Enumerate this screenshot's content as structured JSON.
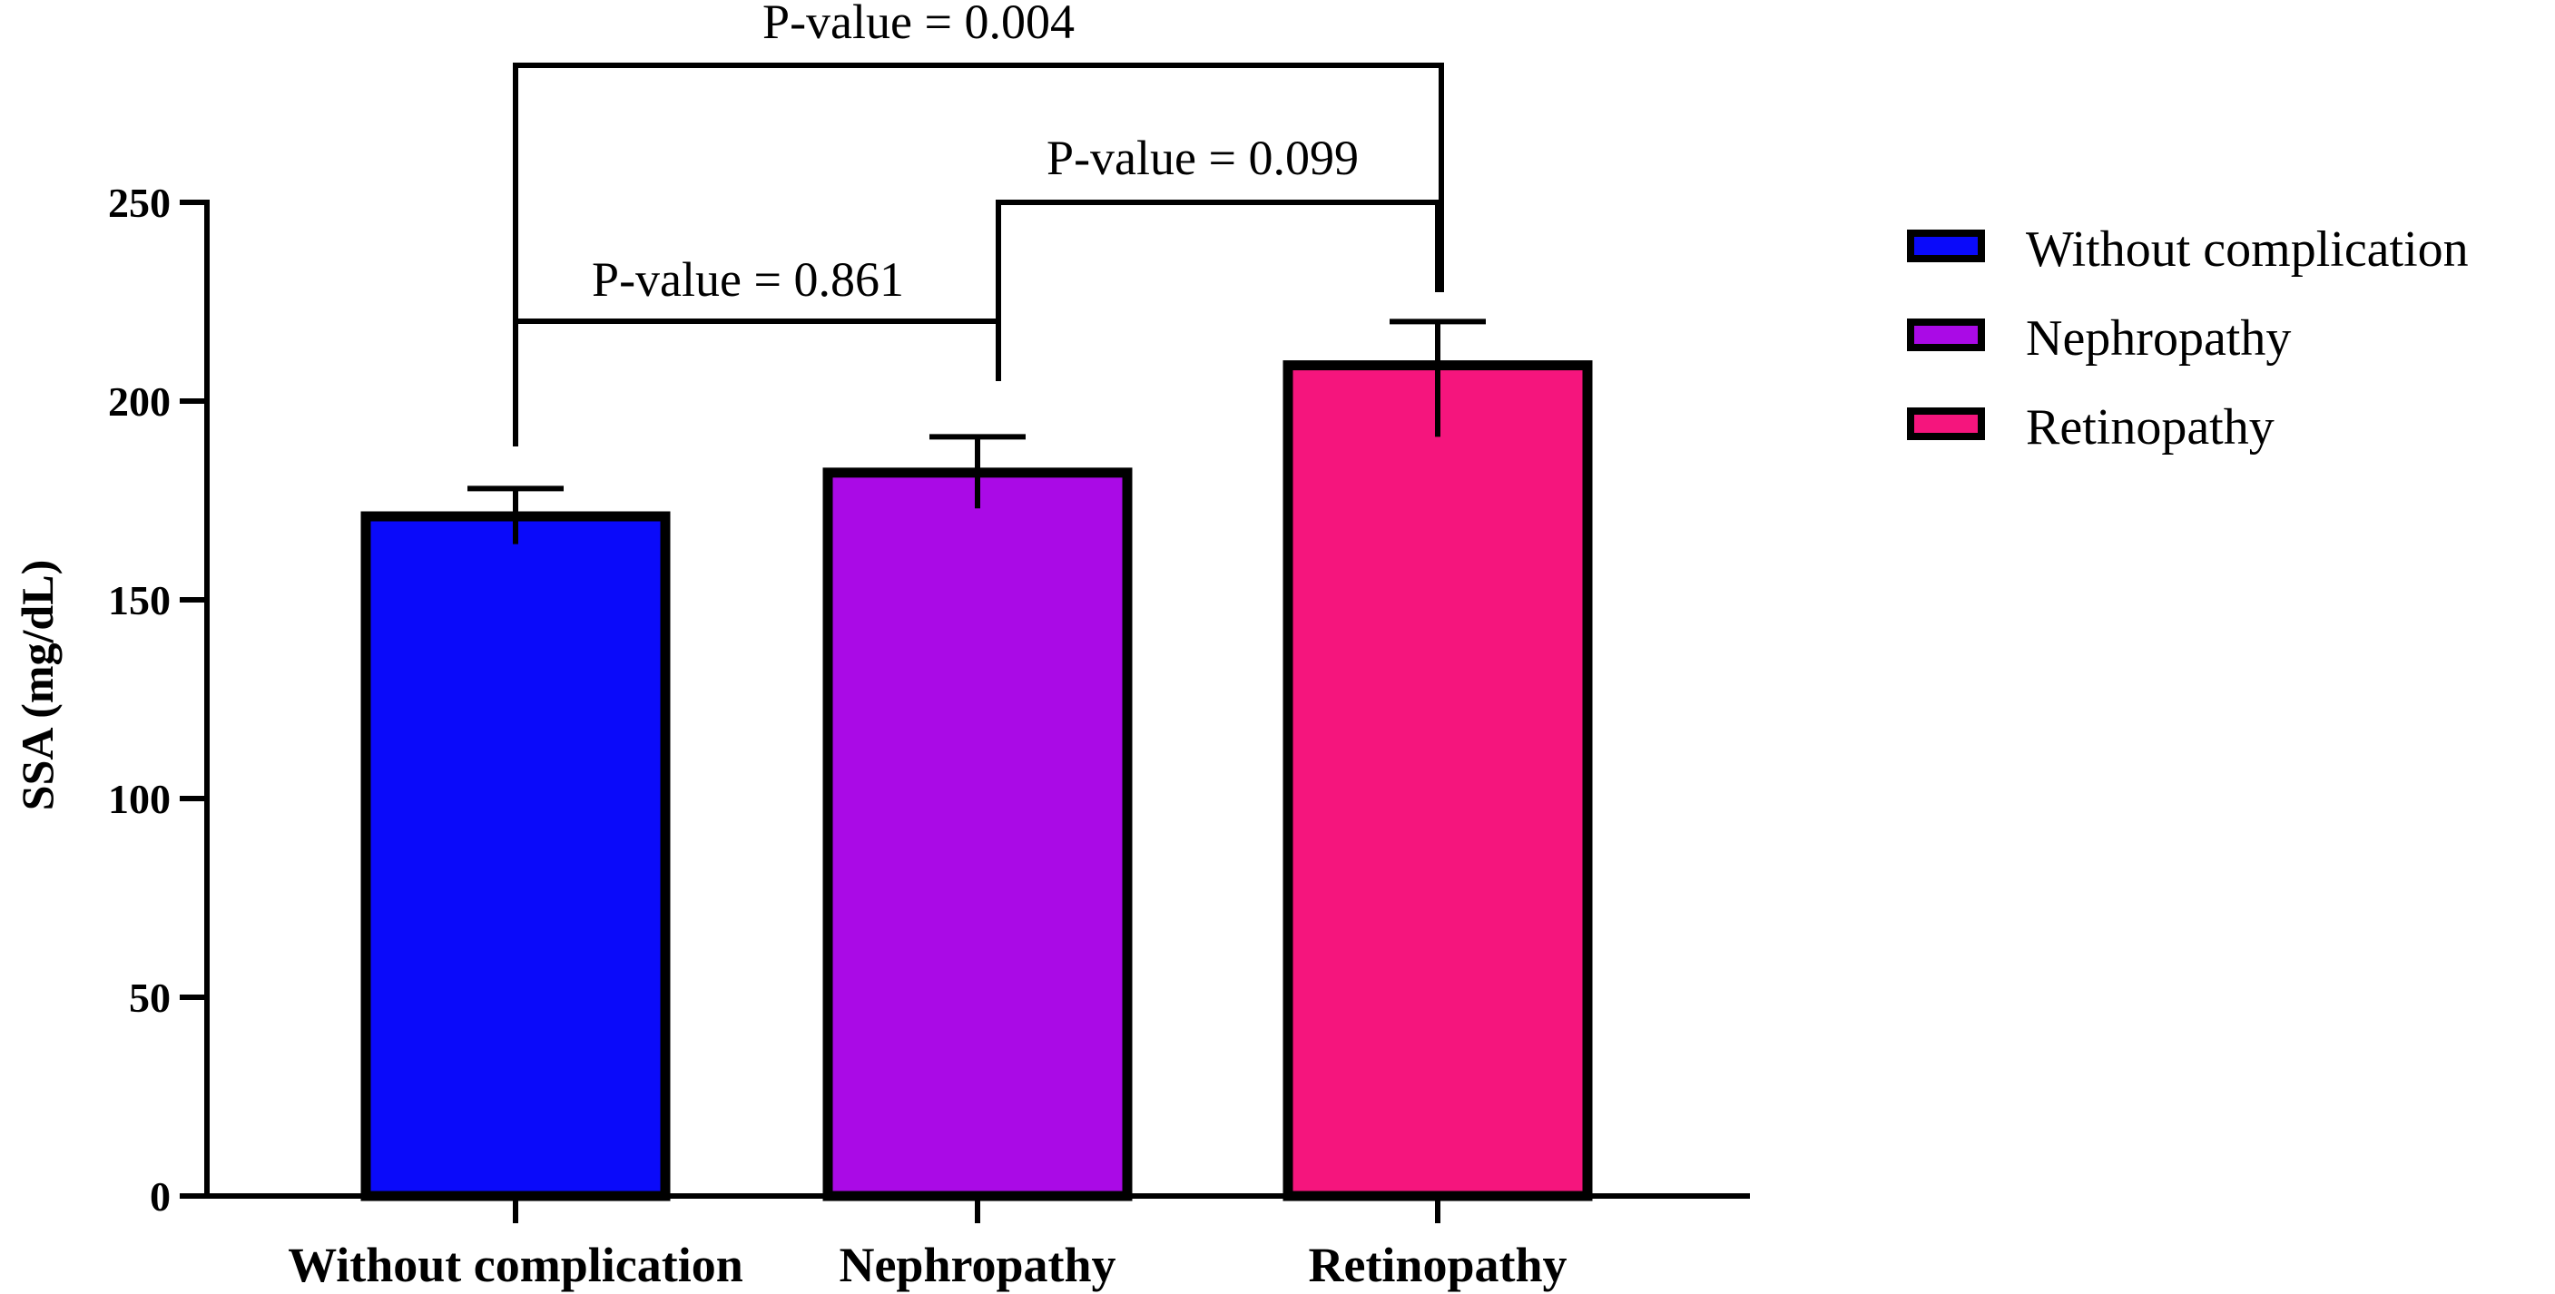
{
  "chart_data": {
    "type": "bar",
    "title": "",
    "xlabel": "",
    "ylabel": "SSA (mg/dL)",
    "ylim": [
      0,
      250
    ],
    "yticks": [
      0,
      50,
      100,
      150,
      200,
      250
    ],
    "categories": [
      "Without complication",
      "Nephropathy",
      "Retinopathy"
    ],
    "values": [
      171,
      182,
      209
    ],
    "error_plus": [
      7,
      9,
      11
    ],
    "error_minus": [
      7,
      9,
      18
    ],
    "colors": [
      "#0a0afa",
      "#aa0ae6",
      "#f5157d"
    ],
    "grid": false,
    "legend": {
      "placement": "right",
      "entries": [
        "Without complication",
        "Nephropathy",
        "Retinopathy"
      ]
    },
    "comparisons": [
      {
        "from": 0,
        "to": 2,
        "label": "P-value = 0.004"
      },
      {
        "from": 1,
        "to": 2,
        "label": "P-value = 0.099"
      },
      {
        "from": 0,
        "to": 1,
        "label": "P-value = 0.861"
      }
    ]
  }
}
